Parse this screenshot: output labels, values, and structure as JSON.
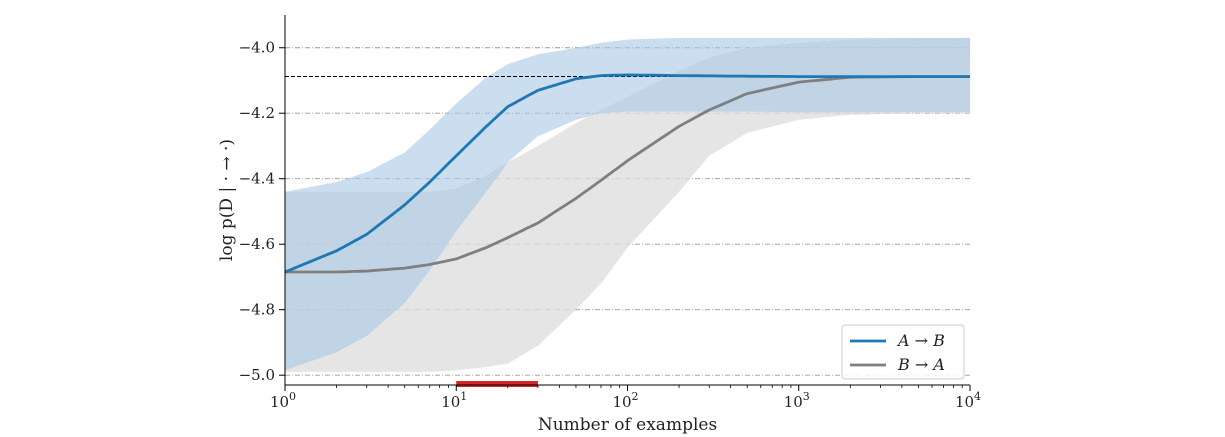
{
  "chart_data": {
    "type": "line",
    "xlabel": "Number of examples",
    "ylabel": "log p(D | · → ·)",
    "xscale": "log",
    "xlim": [
      1,
      10000
    ],
    "ylim": [
      -5.03,
      -3.9
    ],
    "x_ticks": [
      {
        "value": 1,
        "mantissa": "10",
        "exp": "0"
      },
      {
        "value": 10,
        "mantissa": "10",
        "exp": "1"
      },
      {
        "value": 100,
        "mantissa": "10",
        "exp": "2"
      },
      {
        "value": 1000,
        "mantissa": "10",
        "exp": "3"
      },
      {
        "value": 10000,
        "mantissa": "10",
        "exp": "4"
      }
    ],
    "y_ticks": [
      {
        "value": -4.0,
        "label": "−4.0"
      },
      {
        "value": -4.2,
        "label": "−4.2"
      },
      {
        "value": -4.4,
        "label": "−4.4"
      },
      {
        "value": -4.6,
        "label": "−4.6"
      },
      {
        "value": -4.8,
        "label": "−4.8"
      },
      {
        "value": -5.0,
        "label": "−5.0"
      }
    ],
    "grid": "horizontal-dashed",
    "legend": {
      "position": "bottom-right"
    },
    "reference_line": {
      "y": -4.088
    },
    "highlight_interval": {
      "x": [
        10,
        30
      ],
      "color": "#d62728"
    },
    "series": [
      {
        "name": "A → B",
        "color": "#1f77b4",
        "band_color": "#a6c8e4",
        "x": [
          1,
          2,
          3,
          5,
          7,
          10,
          15,
          20,
          30,
          50,
          70,
          100,
          200,
          500,
          1000,
          10000
        ],
        "y": [
          -4.685,
          -4.62,
          -4.57,
          -4.48,
          -4.41,
          -4.33,
          -4.24,
          -4.18,
          -4.13,
          -4.095,
          -4.085,
          -4.083,
          -4.085,
          -4.087,
          -4.088,
          -4.088
        ],
        "upper": [
          -4.44,
          -4.41,
          -4.38,
          -4.32,
          -4.25,
          -4.17,
          -4.09,
          -4.05,
          -4.02,
          -4.0,
          -3.985,
          -3.975,
          -3.97,
          -3.97,
          -3.97,
          -3.97
        ],
        "lower": [
          -4.985,
          -4.93,
          -4.88,
          -4.78,
          -4.68,
          -4.56,
          -4.44,
          -4.35,
          -4.27,
          -4.22,
          -4.2,
          -4.195,
          -4.195,
          -4.195,
          -4.197,
          -4.197
        ]
      },
      {
        "name": "B → A",
        "color": "#7f7f7f",
        "band_color": "#dcdcdc",
        "x": [
          1,
          2,
          3,
          5,
          7,
          10,
          15,
          20,
          30,
          50,
          70,
          100,
          200,
          300,
          500,
          1000,
          2000,
          5000,
          10000
        ],
        "y": [
          -4.685,
          -4.685,
          -4.682,
          -4.673,
          -4.662,
          -4.645,
          -4.61,
          -4.58,
          -4.535,
          -4.46,
          -4.405,
          -4.345,
          -4.24,
          -4.19,
          -4.14,
          -4.105,
          -4.09,
          -4.088,
          -4.088
        ],
        "upper": [
          -4.44,
          -4.44,
          -4.44,
          -4.44,
          -4.44,
          -4.43,
          -4.39,
          -4.35,
          -4.3,
          -4.23,
          -4.19,
          -4.15,
          -4.07,
          -4.03,
          -4.0,
          -3.985,
          -3.975,
          -3.97,
          -3.97
        ],
        "lower": [
          -4.99,
          -4.99,
          -4.99,
          -4.99,
          -4.99,
          -4.985,
          -4.975,
          -4.965,
          -4.91,
          -4.8,
          -4.72,
          -4.61,
          -4.44,
          -4.33,
          -4.26,
          -4.22,
          -4.205,
          -4.2,
          -4.2
        ]
      }
    ]
  }
}
